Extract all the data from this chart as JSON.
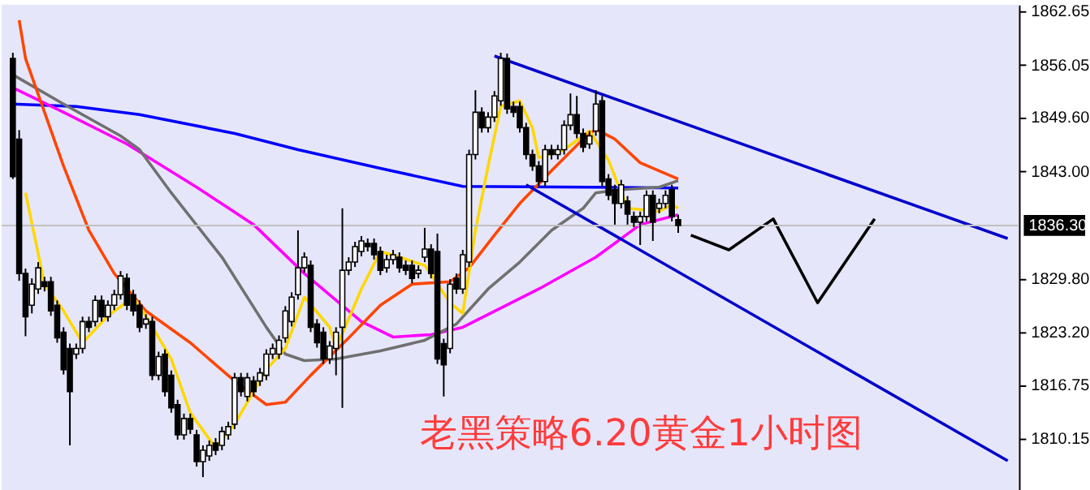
{
  "chart_data": {
    "type": "candlestick",
    "annotations": [
      "老黑策略6.20黄金1小时图"
    ],
    "categories": [
      null,
      null,
      null,
      null,
      null,
      null,
      null,
      null,
      null,
      null,
      null,
      null,
      null,
      null,
      null,
      null,
      null,
      null,
      null,
      null,
      null,
      null,
      null,
      null,
      null,
      null,
      null,
      null,
      null,
      null,
      null,
      null,
      null,
      null,
      null,
      null,
      null,
      null,
      null,
      null,
      null,
      null,
      null,
      null,
      null,
      null,
      null,
      null,
      null,
      null,
      null,
      null,
      null,
      null,
      null,
      null,
      null,
      null,
      null,
      null,
      null,
      null,
      null,
      null,
      null,
      null,
      null,
      null,
      null,
      null,
      null,
      null,
      null,
      null,
      null,
      null,
      null,
      null,
      null,
      null,
      null,
      null,
      null,
      null,
      null,
      null,
      null,
      null,
      null,
      null,
      null,
      null,
      null,
      null,
      null,
      null,
      null,
      null,
      null,
      null,
      null,
      null,
      null,
      null,
      null,
      null,
      null,
      null,
      null,
      null,
      null,
      null,
      null,
      null,
      null,
      null,
      null,
      null,
      null,
      null,
      null,
      null,
      null,
      null,
      null,
      null,
      null,
      null,
      null,
      null,
      null,
      null,
      null,
      null,
      null,
      null,
      null,
      null,
      null,
      null,
      null,
      null,
      null,
      null,
      null,
      null,
      null,
      null,
      null,
      null,
      null,
      null,
      null,
      null,
      null,
      null,
      null,
      null
    ],
    "ohlc": [
      [
        1856.8,
        1857.5,
        1842.0,
        1842.3
      ],
      [
        1846.9,
        1848.0,
        1829.5,
        1830.4
      ],
      [
        1830.4,
        1831.0,
        1822.7,
        1825.1
      ],
      [
        1826.5,
        1829.8,
        1825.5,
        1829.1
      ],
      [
        1828.5,
        1831.8,
        1827.9,
        1831.1
      ],
      [
        1829.4,
        1830.0,
        1828.2,
        1828.8
      ],
      [
        1829.4,
        1830.0,
        1825.2,
        1825.8
      ],
      [
        1826.5,
        1827.1,
        1821.9,
        1822.5
      ],
      [
        1823.2,
        1823.8,
        1818.0,
        1818.6
      ],
      [
        1821.2,
        1821.8,
        1809.3,
        1815.9
      ],
      [
        1820.5,
        1821.8,
        1819.9,
        1821.2
      ],
      [
        1821.2,
        1825.1,
        1820.6,
        1824.5
      ],
      [
        1824.5,
        1825.1,
        1823.2,
        1823.8
      ],
      [
        1824.5,
        1827.7,
        1823.9,
        1827.1
      ],
      [
        1827.1,
        1827.7,
        1824.5,
        1825.1
      ],
      [
        1825.1,
        1827.1,
        1824.5,
        1826.5
      ],
      [
        1826.5,
        1828.4,
        1825.9,
        1827.8
      ],
      [
        1827.8,
        1830.7,
        1827.2,
        1830.1
      ],
      [
        1829.8,
        1830.4,
        1825.9,
        1826.5
      ],
      [
        1827.8,
        1828.4,
        1825.2,
        1825.8
      ],
      [
        1826.5,
        1827.1,
        1823.2,
        1823.8
      ],
      [
        1824.2,
        1825.4,
        1823.6,
        1824.8
      ],
      [
        1824.5,
        1825.1,
        1817.3,
        1817.9
      ],
      [
        1817.9,
        1820.8,
        1817.3,
        1820.2
      ],
      [
        1820.5,
        1821.1,
        1815.3,
        1815.9
      ],
      [
        1817.9,
        1818.5,
        1813.3,
        1813.9
      ],
      [
        1814.3,
        1814.9,
        1810.0,
        1810.6
      ],
      [
        1810.6,
        1813.2,
        1810.0,
        1812.6
      ],
      [
        1812.6,
        1813.2,
        1810.7,
        1811.3
      ],
      [
        1810.6,
        1811.2,
        1806.7,
        1807.3
      ],
      [
        1807.3,
        1809.3,
        1805.4,
        1808.7
      ],
      [
        1808.0,
        1809.9,
        1807.4,
        1809.3
      ],
      [
        1809.6,
        1810.2,
        1808.1,
        1808.7
      ],
      [
        1809.3,
        1811.6,
        1808.7,
        1811.0
      ],
      [
        1810.6,
        1812.2,
        1810.0,
        1811.6
      ],
      [
        1811.9,
        1818.2,
        1811.3,
        1817.6
      ],
      [
        1817.6,
        1818.2,
        1815.3,
        1815.9
      ],
      [
        1815.3,
        1818.2,
        1814.7,
        1817.6
      ],
      [
        1817.2,
        1817.8,
        1815.3,
        1815.9
      ],
      [
        1817.2,
        1818.8,
        1816.6,
        1818.2
      ],
      [
        1817.9,
        1821.1,
        1817.3,
        1820.5
      ],
      [
        1820.5,
        1821.8,
        1819.9,
        1821.2
      ],
      [
        1820.5,
        1822.8,
        1819.9,
        1822.2
      ],
      [
        1822.5,
        1826.4,
        1821.9,
        1825.8
      ],
      [
        1824.5,
        1828.1,
        1823.9,
        1827.5
      ],
      [
        1827.8,
        1835.7,
        1827.2,
        1831.1
      ],
      [
        1831.1,
        1833.0,
        1830.5,
        1832.4
      ],
      [
        1831.4,
        1832.0,
        1823.2,
        1823.8
      ],
      [
        1824.2,
        1824.8,
        1821.3,
        1821.9
      ],
      [
        1823.2,
        1823.8,
        1819.3,
        1819.9
      ],
      [
        1819.9,
        1822.1,
        1819.3,
        1821.5
      ],
      [
        1821.2,
        1823.8,
        1817.9,
        1823.2
      ],
      [
        1823.8,
        1838.4,
        1813.9,
        1830.8
      ],
      [
        1830.8,
        1832.4,
        1830.2,
        1831.8
      ],
      [
        1831.8,
        1834.3,
        1831.2,
        1833.7
      ],
      [
        1833.1,
        1835.0,
        1832.5,
        1834.4
      ],
      [
        1834.1,
        1834.7,
        1833.1,
        1833.7
      ],
      [
        1834.1,
        1834.7,
        1832.1,
        1832.7
      ],
      [
        1833.1,
        1833.7,
        1830.2,
        1830.8
      ],
      [
        1831.1,
        1832.7,
        1830.5,
        1832.1
      ],
      [
        1832.1,
        1833.3,
        1831.5,
        1832.7
      ],
      [
        1832.4,
        1833.0,
        1830.5,
        1831.1
      ],
      [
        1831.4,
        1832.0,
        1830.2,
        1830.8
      ],
      [
        1831.4,
        1832.0,
        1829.2,
        1829.8
      ],
      [
        1830.4,
        1831.4,
        1829.8,
        1830.8
      ],
      [
        1832.4,
        1836.0,
        1831.8,
        1833.4
      ],
      [
        1833.4,
        1834.0,
        1829.8,
        1830.4
      ],
      [
        1833.1,
        1835.3,
        1819.3,
        1819.9
      ],
      [
        1821.8,
        1822.4,
        1815.3,
        1819.2
      ],
      [
        1821.2,
        1829.7,
        1820.6,
        1829.1
      ],
      [
        1829.8,
        1830.4,
        1827.9,
        1828.5
      ],
      [
        1828.5,
        1833.3,
        1827.9,
        1832.7
      ],
      [
        1831.8,
        1845.6,
        1831.2,
        1845.0
      ],
      [
        1845.0,
        1852.9,
        1844.4,
        1850.2
      ],
      [
        1850.2,
        1850.8,
        1847.7,
        1848.3
      ],
      [
        1848.3,
        1850.2,
        1847.7,
        1849.6
      ],
      [
        1849.6,
        1852.8,
        1849.0,
        1852.2
      ],
      [
        1851.6,
        1857.5,
        1851.0,
        1856.8
      ],
      [
        1856.8,
        1857.4,
        1850.0,
        1850.6
      ],
      [
        1850.9,
        1851.5,
        1849.6,
        1850.2
      ],
      [
        1850.9,
        1851.5,
        1847.7,
        1848.3
      ],
      [
        1848.3,
        1848.9,
        1844.4,
        1845.0
      ],
      [
        1845.0,
        1845.6,
        1843.0,
        1843.6
      ],
      [
        1843.6,
        1844.2,
        1841.1,
        1841.7
      ],
      [
        1841.7,
        1846.2,
        1841.1,
        1845.6
      ],
      [
        1845.6,
        1846.2,
        1844.4,
        1845.0
      ],
      [
        1845.0,
        1846.2,
        1844.4,
        1845.6
      ],
      [
        1845.6,
        1849.2,
        1845.0,
        1848.6
      ],
      [
        1848.6,
        1852.5,
        1848.0,
        1849.9
      ],
      [
        1849.9,
        1852.2,
        1847.0,
        1847.6
      ],
      [
        1847.6,
        1848.2,
        1845.3,
        1845.9
      ],
      [
        1846.3,
        1847.9,
        1845.7,
        1847.3
      ],
      [
        1847.9,
        1852.9,
        1847.3,
        1851.2
      ],
      [
        1851.6,
        1852.2,
        1841.1,
        1841.7
      ],
      [
        1842.0,
        1842.6,
        1839.4,
        1840.0
      ],
      [
        1840.7,
        1841.3,
        1836.4,
        1839.0
      ],
      [
        1839.0,
        1841.9,
        1838.4,
        1841.3
      ],
      [
        1839.3,
        1839.9,
        1836.4,
        1837.7
      ],
      [
        1837.4,
        1838.0,
        1836.1,
        1836.7
      ],
      [
        1836.7,
        1838.0,
        1833.9,
        1837.4
      ],
      [
        1837.4,
        1840.6,
        1836.8,
        1840.0
      ],
      [
        1840.0,
        1840.6,
        1834.4,
        1836.7
      ],
      [
        1838.4,
        1839.6,
        1837.8,
        1839.0
      ],
      [
        1839.0,
        1840.6,
        1838.4,
        1840.0
      ],
      [
        1840.7,
        1841.3,
        1836.8,
        1837.4
      ],
      [
        1837.0,
        1837.6,
        1835.4,
        1836.3
      ],
      null,
      null,
      null,
      null,
      null,
      null,
      null,
      null,
      null,
      null,
      null,
      null,
      null,
      null,
      null,
      null,
      null,
      null,
      null,
      null,
      null,
      null,
      null,
      null,
      null,
      null,
      null,
      null,
      null,
      null,
      null,
      null,
      null,
      null,
      null,
      null,
      null,
      null,
      null,
      null,
      null,
      null,
      null,
      null,
      null,
      null,
      null,
      null,
      null,
      null,
      null,
      null
    ],
    "series": [
      {
        "type": "line",
        "color": "#0000ff",
        "values": [
          1851.2,
          null,
          null,
          null,
          null,
          null,
          null,
          null,
          null,
          null,
          1850.9,
          null,
          null,
          null,
          null,
          null,
          null,
          null,
          null,
          null,
          1849.9,
          null,
          null,
          null,
          null,
          null,
          null,
          null,
          null,
          null,
          null,
          null,
          null,
          null,
          null,
          1847.6,
          null,
          null,
          null,
          null,
          null,
          null,
          null,
          null,
          null,
          1845.6,
          null,
          null,
          null,
          null,
          null,
          null,
          null,
          null,
          null,
          null,
          null,
          null,
          1843.3,
          null,
          null,
          null,
          null,
          null,
          null,
          null,
          null,
          null,
          null,
          null,
          null,
          1841.1,
          null,
          null,
          null,
          null,
          null,
          null,
          null,
          null,
          null,
          null,
          null,
          null,
          null,
          null,
          null,
          null,
          null,
          null,
          null,
          1841.0,
          null,
          null,
          null,
          null,
          null,
          null,
          null,
          null,
          null,
          null,
          null,
          null,
          null,
          1840.9,
          null,
          null,
          null,
          null,
          null,
          null,
          null,
          null,
          null,
          null,
          null,
          null,
          null,
          null,
          null,
          null,
          null,
          null,
          null,
          null,
          null,
          null,
          null,
          null,
          null,
          null,
          null,
          null,
          null,
          null,
          null,
          null,
          null,
          null,
          null,
          null,
          null,
          null,
          null,
          null,
          null,
          null,
          null,
          null,
          null,
          null,
          null,
          null,
          null,
          null,
          null,
          null
        ]
      },
      {
        "type": "line",
        "color": "#ff00ff",
        "values": [
          1853.2,
          null,
          null,
          null,
          null,
          null,
          null,
          null,
          1850.2,
          null,
          null,
          null,
          null,
          null,
          null,
          null,
          null,
          null,
          1846.3,
          null,
          null,
          null,
          null,
          null,
          null,
          null,
          null,
          null,
          null,
          1841.0,
          null,
          null,
          null,
          null,
          null,
          null,
          null,
          null,
          1836.4,
          null,
          null,
          null,
          null,
          null,
          null,
          null,
          1830.4,
          null,
          null,
          null,
          null,
          null,
          null,
          null,
          null,
          1824.5,
          null,
          null,
          null,
          null,
          1822.6,
          null,
          null,
          null,
          null,
          null,
          1822.9,
          null,
          null,
          null,
          null,
          1823.8,
          null,
          null,
          null,
          null,
          null,
          null,
          null,
          null,
          null,
          null,
          null,
          1828.5,
          null,
          null,
          null,
          null,
          null,
          null,
          null,
          null,
          1832.4,
          null,
          null,
          null,
          null,
          null,
          null,
          1836.4,
          null,
          null,
          null,
          null,
          null,
          1837.6,
          null,
          null,
          null,
          null,
          null,
          null,
          null,
          null,
          null,
          null,
          null,
          null,
          null,
          null,
          null,
          null,
          null,
          null,
          null,
          null,
          null,
          null,
          null,
          null,
          null,
          null,
          null,
          null,
          null,
          null,
          null,
          null,
          null,
          null,
          null,
          null,
          null,
          null,
          null,
          null,
          null,
          null,
          null,
          null,
          null,
          null,
          null,
          null,
          null,
          null,
          null,
          null
        ]
      },
      {
        "type": "line",
        "color": "#707070",
        "values": [
          1854.8,
          null,
          null,
          null,
          null,
          null,
          null,
          null,
          1851.2,
          null,
          null,
          null,
          null,
          null,
          null,
          null,
          null,
          1847.3,
          null,
          null,
          1845.6,
          null,
          null,
          null,
          null,
          1840.3,
          null,
          null,
          null,
          null,
          null,
          null,
          null,
          1832.4,
          null,
          null,
          null,
          null,
          null,
          null,
          1823.8,
          null,
          null,
          1820.5,
          null,
          null,
          1819.7,
          null,
          null,
          null,
          null,
          1819.9,
          null,
          null,
          null,
          null,
          null,
          null,
          1820.9,
          null,
          null,
          null,
          null,
          null,
          null,
          1822.2,
          null,
          null,
          null,
          null,
          1824.2,
          null,
          null,
          null,
          null,
          1828.5,
          null,
          null,
          null,
          null,
          1831.8,
          null,
          null,
          null,
          null,
          1835.7,
          null,
          null,
          null,
          null,
          1838.4,
          null,
          1840.3,
          null,
          null,
          null,
          1840.7,
          null,
          null,
          null,
          null,
          null,
          1841.0,
          null,
          null,
          1841.8,
          null,
          null,
          null,
          null,
          null,
          null,
          null,
          null,
          null,
          null,
          null,
          null,
          null,
          null,
          null,
          null,
          null,
          null,
          null,
          null,
          null,
          null,
          null,
          null,
          null,
          null,
          null,
          null,
          null,
          null,
          null,
          null,
          null,
          null,
          null,
          null,
          null,
          null,
          null,
          null,
          null,
          null,
          null,
          null,
          null,
          null,
          null,
          null,
          null,
          null,
          null,
          null
        ]
      },
      {
        "type": "line",
        "color": "#ff4500",
        "values": [
          null,
          1861.5,
          1856.8,
          null,
          null,
          1850.2,
          null,
          null,
          1843.6,
          null,
          null,
          null,
          1835.7,
          null,
          null,
          null,
          1830.4,
          null,
          null,
          null,
          null,
          1825.8,
          null,
          null,
          null,
          null,
          null,
          null,
          1821.9,
          null,
          null,
          null,
          null,
          null,
          null,
          1817.2,
          null,
          null,
          null,
          null,
          1814.3,
          null,
          null,
          1814.6,
          null,
          null,
          null,
          1817.9,
          null,
          null,
          null,
          null,
          null,
          1822.5,
          null,
          null,
          null,
          null,
          1826.5,
          null,
          null,
          null,
          null,
          1829.1,
          null,
          null,
          null,
          null,
          null,
          1829.4,
          null,
          null,
          1831.1,
          null,
          null,
          null,
          1835.1,
          null,
          null,
          null,
          1839.0,
          null,
          null,
          null,
          null,
          1843.0,
          null,
          null,
          null,
          null,
          1846.9,
          null,
          1848.1,
          null,
          null,
          1846.9,
          null,
          null,
          null,
          1844.0,
          null,
          null,
          1843.0,
          null,
          null,
          1842.0,
          null,
          null,
          null,
          null,
          null,
          null,
          null,
          null,
          null,
          null,
          null,
          null,
          null,
          null,
          null,
          null,
          null,
          null,
          null,
          null,
          null,
          null,
          null,
          null,
          null,
          null,
          null,
          null,
          null,
          null,
          null,
          null,
          null,
          null,
          null,
          null,
          null,
          null,
          null,
          null,
          null,
          null,
          null,
          null,
          null,
          null,
          null,
          null,
          null,
          null,
          null,
          null
        ]
      },
      {
        "type": "line",
        "color": "#ffd700",
        "values": [
          null,
          null,
          1840.3,
          null,
          null,
          1829.1,
          null,
          null,
          1825.8,
          null,
          null,
          1821.9,
          null,
          null,
          null,
          1825.2,
          null,
          null,
          null,
          1827.5,
          null,
          1825.2,
          null,
          null,
          null,
          1819.9,
          null,
          null,
          1813.3,
          null,
          null,
          null,
          1809.0,
          null,
          null,
          1811.9,
          null,
          null,
          null,
          null,
          1818.6,
          null,
          null,
          1821.2,
          null,
          null,
          1827.5,
          null,
          null,
          null,
          1823.8,
          1821.2,
          null,
          null,
          null,
          1828.5,
          null,
          null,
          1833.1,
          null,
          null,
          1832.4,
          null,
          null,
          null,
          1831.4,
          null,
          null,
          null,
          1826.8,
          null,
          1825.5,
          null,
          1835.7,
          null,
          1843.6,
          null,
          1850.9,
          null,
          null,
          1851.6,
          null,
          1848.3,
          1844.6,
          null,
          null,
          null,
          1845.6,
          null,
          null,
          null,
          1847.9,
          null,
          null,
          1844.3,
          null,
          null,
          1838.4,
          null,
          null,
          null,
          null,
          1838.0,
          null,
          1838.9,
          1838.4,
          null,
          null,
          null,
          null,
          null,
          null,
          null,
          null,
          null,
          null,
          null,
          null,
          null,
          null,
          null,
          null,
          null,
          null,
          null,
          null,
          null,
          null,
          null,
          null,
          null,
          null,
          null,
          null,
          null,
          null,
          null,
          null,
          null,
          null,
          null,
          null,
          null,
          null,
          null,
          null,
          null,
          null,
          null,
          null,
          null,
          null,
          null,
          null,
          null,
          null,
          null,
          null
        ]
      },
      {
        "type": "line",
        "color": "#0000cd",
        "values": [
          null,
          null,
          null,
          null,
          null,
          null,
          null,
          null,
          null,
          null,
          null,
          null,
          null,
          null,
          null,
          null,
          null,
          null,
          null,
          null,
          null,
          null,
          null,
          null,
          null,
          null,
          null,
          null,
          null,
          null,
          null,
          null,
          null,
          null,
          null,
          null,
          null,
          null,
          null,
          null,
          null,
          null,
          null,
          null,
          null,
          null,
          null,
          null,
          null,
          null,
          null,
          null,
          null,
          null,
          null,
          null,
          null,
          null,
          null,
          null,
          null,
          null,
          null,
          null,
          null,
          null,
          null,
          null,
          null,
          null,
          null,
          null,
          null,
          null,
          null,
          null,
          1857.1,
          null,
          null,
          null,
          null,
          null,
          null,
          null,
          null,
          null,
          null,
          null,
          null,
          null,
          null,
          null,
          null,
          null,
          null,
          null,
          null,
          null,
          null,
          null,
          null,
          null,
          null,
          null,
          null,
          null,
          null,
          null,
          null,
          null,
          null,
          null,
          null,
          null,
          null,
          null,
          null,
          null,
          null,
          null,
          null,
          null,
          null,
          null,
          null,
          null,
          null,
          null,
          null,
          null,
          null,
          null,
          null,
          null,
          null,
          null,
          null,
          null,
          null,
          null,
          null,
          null,
          null,
          null,
          null,
          null,
          null,
          null,
          null,
          null,
          null,
          null,
          null,
          null,
          null,
          null,
          null,
          1834.7
        ]
      },
      {
        "type": "line",
        "color": "#0000cd",
        "values": [
          null,
          null,
          null,
          null,
          null,
          null,
          null,
          null,
          null,
          null,
          null,
          null,
          null,
          null,
          null,
          null,
          null,
          null,
          null,
          null,
          null,
          null,
          null,
          null,
          null,
          null,
          null,
          null,
          null,
          null,
          null,
          null,
          null,
          null,
          null,
          null,
          null,
          null,
          null,
          null,
          null,
          null,
          null,
          null,
          null,
          null,
          null,
          null,
          null,
          null,
          null,
          null,
          null,
          null,
          null,
          null,
          null,
          null,
          null,
          null,
          null,
          null,
          null,
          null,
          null,
          null,
          null,
          null,
          null,
          null,
          null,
          null,
          null,
          null,
          null,
          null,
          null,
          null,
          null,
          null,
          null,
          1841.3,
          null,
          null,
          null,
          null,
          null,
          null,
          null,
          null,
          null,
          null,
          null,
          null,
          null,
          null,
          null,
          null,
          null,
          null,
          null,
          null,
          null,
          null,
          null,
          null,
          null,
          null,
          null,
          null,
          null,
          null,
          null,
          null,
          null,
          null,
          null,
          null,
          null,
          null,
          null,
          null,
          null,
          null,
          null,
          null,
          null,
          null,
          null,
          null,
          null,
          null,
          null,
          null,
          null,
          null,
          null,
          null,
          null,
          null,
          null,
          null,
          null,
          null,
          null,
          null,
          null,
          null,
          null,
          null,
          null,
          null,
          null,
          null,
          null,
          null,
          null,
          1807.4
        ]
      },
      {
        "type": "line",
        "color": "#000000",
        "values": [
          null,
          null,
          null,
          null,
          null,
          null,
          null,
          null,
          null,
          null,
          null,
          null,
          null,
          null,
          null,
          null,
          null,
          null,
          null,
          null,
          null,
          null,
          null,
          null,
          null,
          null,
          null,
          null,
          null,
          null,
          null,
          null,
          null,
          null,
          null,
          null,
          null,
          null,
          null,
          null,
          null,
          null,
          null,
          null,
          null,
          null,
          null,
          null,
          null,
          null,
          null,
          null,
          null,
          null,
          null,
          null,
          null,
          null,
          null,
          null,
          null,
          null,
          null,
          null,
          null,
          null,
          null,
          null,
          null,
          null,
          null,
          null,
          null,
          null,
          null,
          null,
          null,
          null,
          null,
          null,
          null,
          null,
          null,
          null,
          null,
          null,
          null,
          null,
          null,
          null,
          null,
          null,
          null,
          null,
          null,
          null,
          null,
          null,
          null,
          null,
          null,
          null,
          null,
          null,
          null,
          null,
          null,
          1835.1,
          null,
          null,
          null,
          null,
          null,
          1833.3,
          null,
          null,
          null,
          null,
          null,
          null,
          1837.1,
          null,
          null,
          null,
          null,
          null,
          null,
          1826.8,
          null,
          null,
          null,
          null,
          null,
          null,
          null,
          null,
          1837.1,
          null,
          null,
          null,
          null,
          null,
          null,
          null,
          null,
          null,
          null,
          null,
          null,
          null,
          null,
          null,
          null,
          null,
          null,
          null,
          null,
          null
        ]
      }
    ],
    "ref_lines": [
      {
        "axis": "y",
        "value": 1836.3,
        "label": "1836.30",
        "color": "#c0c0c0"
      }
    ],
    "ylim": [
      1803.6,
      1863.4
    ],
    "yticks": [
      1862.65,
      1856.05,
      {
        "value": 1849.6,
        "label": "1849.60"
      },
      {
        "value": 1843.0,
        "label": "1843.00"
      },
      {
        "value": 1829.8,
        "label": "1829.80"
      },
      {
        "value": 1823.2,
        "label": "1823.20"
      },
      1816.75,
      1810.15
    ],
    "tick_labels": "y",
    "grid": false
  }
}
